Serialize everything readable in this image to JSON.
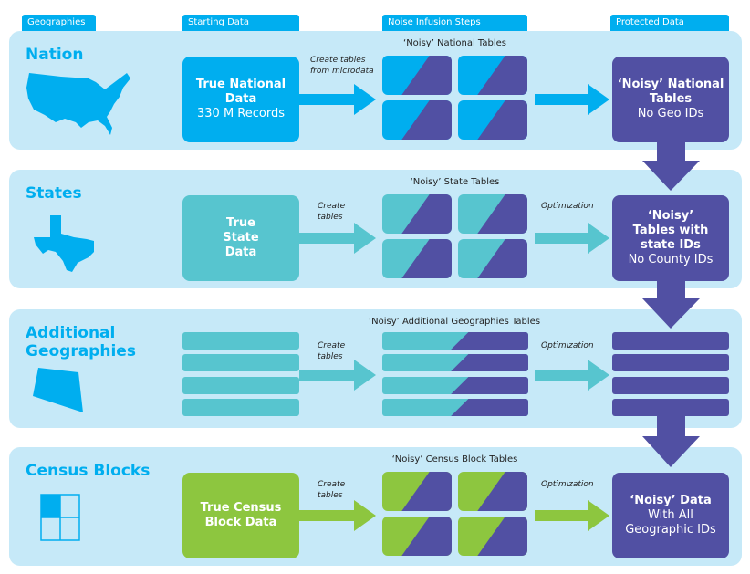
{
  "headers": [
    "Geographies",
    "Starting Data",
    "Noise Infusion Steps",
    "Protected Data"
  ],
  "colors": {
    "panel": "#c6e9f8",
    "nation": "#00aeef",
    "state": "#57c5cf",
    "geo": "#57c5cf",
    "block": "#8dc63f",
    "protected": "#5150a3"
  },
  "rows": [
    {
      "geo": "Nation",
      "icon": "us-map-icon",
      "start_bold": "True National Data",
      "start_sub": "330 M Records",
      "step_label": "Create tables from microdata",
      "tables_title": "‘Noisy’ National Tables",
      "opt_label": "",
      "prot_bold": "‘Noisy’ National Tables",
      "prot_sub": "No Geo IDs"
    },
    {
      "geo": "States",
      "icon": "texas-map-icon",
      "start_bold": "True State Data",
      "start_sub": "",
      "step_label": "Create tables",
      "tables_title": "‘Noisy’ State Tables",
      "opt_label": "Optimization",
      "prot_bold": "‘Noisy’ Tables with state IDs",
      "prot_sub": "No County IDs"
    },
    {
      "geo": "Additional Geographies",
      "icon": "polygon-region-icon",
      "step_label": "Create tables",
      "tables_title": "‘Noisy’ Additional Geographies Tables",
      "opt_label": "Optimization"
    },
    {
      "geo": "Census Blocks",
      "icon": "block-grid-icon",
      "start_bold": "True Census Block Data",
      "start_sub": "",
      "step_label": "Create tables",
      "tables_title": "‘Noisy’ Census Block Tables",
      "opt_label": "Optimization",
      "prot_bold": "‘Noisy’ Data",
      "prot_sub": "With All Geographic IDs"
    }
  ]
}
